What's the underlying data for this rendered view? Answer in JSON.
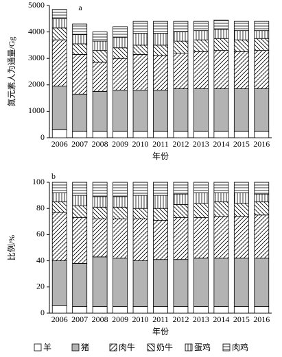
{
  "legend": [
    "羊",
    "猪",
    "肉牛",
    "奶牛",
    "蛋鸡",
    "肉鸡"
  ],
  "chart_data": [
    {
      "type": "bar",
      "stacked": true,
      "label": "a",
      "ylabel": "氮元素人为通量/Gg",
      "xlabel": "年份",
      "categories": [
        "2006",
        "2007",
        "2008",
        "2009",
        "2010",
        "2011",
        "2012",
        "2013",
        "2014",
        "2015",
        "2016"
      ],
      "ylim": [
        0,
        5000
      ],
      "yticks": [
        0,
        1000,
        2000,
        3000,
        4000,
        5000
      ],
      "series": [
        {
          "pattern": "white",
          "values": [
            300,
            250,
            250,
            250,
            250,
            250,
            250,
            250,
            250,
            250,
            250
          ]
        },
        {
          "pattern": "gray",
          "values": [
            1650,
            1400,
            1500,
            1550,
            1550,
            1550,
            1600,
            1600,
            1600,
            1600,
            1600
          ]
        },
        {
          "pattern": "slash",
          "values": [
            1750,
            1500,
            1100,
            1200,
            1350,
            1300,
            1350,
            1400,
            1450,
            1400,
            1450
          ]
        },
        {
          "pattern": "backslash",
          "values": [
            450,
            400,
            450,
            400,
            350,
            400,
            450,
            450,
            450,
            450,
            450
          ]
        },
        {
          "pattern": "vertical",
          "values": [
            350,
            350,
            350,
            400,
            450,
            450,
            350,
            350,
            350,
            350,
            300
          ]
        },
        {
          "pattern": "horizontal",
          "values": [
            350,
            400,
            350,
            400,
            450,
            450,
            400,
            350,
            350,
            350,
            350
          ]
        }
      ]
    },
    {
      "type": "bar",
      "stacked": true,
      "label": "b",
      "ylabel": "比例/%",
      "xlabel": "年份",
      "categories": [
        "2006",
        "2007",
        "2008",
        "2009",
        "2010",
        "2011",
        "2012",
        "2013",
        "2014",
        "2015",
        "2016"
      ],
      "ylim": [
        0,
        100
      ],
      "yticks": [
        0,
        20,
        40,
        60,
        80,
        100
      ],
      "series": [
        {
          "pattern": "white",
          "values": [
            6,
            5,
            5,
            5,
            5,
            5,
            5,
            5,
            5,
            5,
            5
          ]
        },
        {
          "pattern": "gray",
          "values": [
            34,
            33,
            38,
            37,
            35,
            36,
            36,
            37,
            37,
            37,
            37
          ]
        },
        {
          "pattern": "slash",
          "values": [
            37,
            35,
            29,
            30,
            32,
            30,
            32,
            31,
            32,
            32,
            33
          ]
        },
        {
          "pattern": "backslash",
          "values": [
            8,
            9,
            9,
            9,
            8,
            9,
            10,
            11,
            11,
            10,
            10
          ]
        },
        {
          "pattern": "vertical",
          "values": [
            7,
            8,
            8,
            8,
            10,
            10,
            8,
            8,
            7,
            8,
            6
          ]
        },
        {
          "pattern": "horizontal",
          "values": [
            8,
            10,
            11,
            11,
            10,
            10,
            9,
            8,
            8,
            8,
            9
          ]
        }
      ]
    }
  ]
}
